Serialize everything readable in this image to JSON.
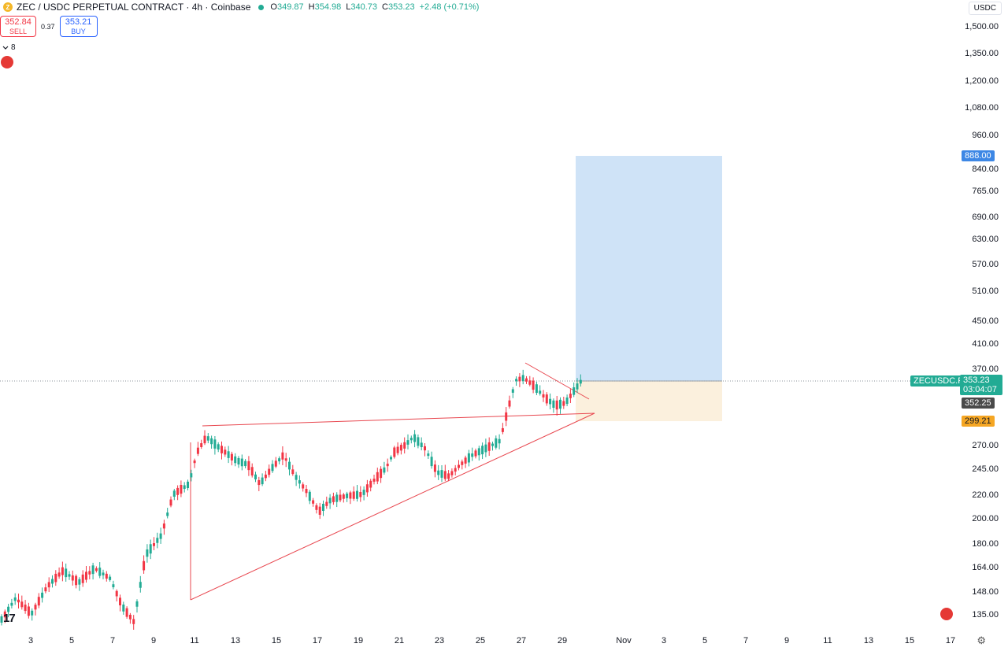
{
  "header": {
    "symbol": "ZEC / USDC PERPETUAL CONTRACT · 4h · Coinbase",
    "open_label": "O",
    "open": "349.87",
    "high_label": "H",
    "high": "354.98",
    "low_label": "L",
    "low": "340.73",
    "close_label": "C",
    "close": "353.23",
    "change": "+2.48 (+0.71%)"
  },
  "trade": {
    "sell_price": "352.84",
    "sell_label": "SELL",
    "spread": "0.37",
    "buy_price": "353.21",
    "buy_label": "BUY"
  },
  "indicators": {
    "collapse_count": "8"
  },
  "currency": "USDC",
  "price_axis": {
    "ticks": [
      "1,500.00",
      "1,350.00",
      "1,200.00",
      "1,080.00",
      "960.00",
      "840.00",
      "765.00",
      "690.00",
      "630.00",
      "570.00",
      "510.00",
      "450.00",
      "410.00",
      "370.00",
      "270.00",
      "245.00",
      "220.00",
      "200.00",
      "180.00",
      "164.00",
      "148.00",
      "135.00"
    ],
    "target_tag": "888.00",
    "symbol_tag": "ZECUSDC.P",
    "last_price": "353.23",
    "countdown": "03:04:07",
    "bid_tag": "352.25",
    "stop_tag": "299.21",
    "scale": "log"
  },
  "time_axis": {
    "ticks": [
      "3",
      "5",
      "7",
      "9",
      "11",
      "13",
      "15",
      "17",
      "19",
      "21",
      "23",
      "25",
      "27",
      "29",
      "Nov",
      "3",
      "5",
      "7",
      "9",
      "11",
      "13",
      "15",
      "17"
    ]
  },
  "colors": {
    "up": "#22ab94",
    "down": "#f23645",
    "profit_zone": "#cfe3f7",
    "loss_zone": "#fbf0dd",
    "trendline": "#e8474f",
    "target_tag": "#3d87e5",
    "stop_tag": "#f5a623",
    "last_price_tag": "#22ab94",
    "bid_tag": "#4a4a4a"
  },
  "icons": [
    "tradingview-logo-icon",
    "settings-gear-icon",
    "chevron-down-icon",
    "alert-dot-icon"
  ]
}
